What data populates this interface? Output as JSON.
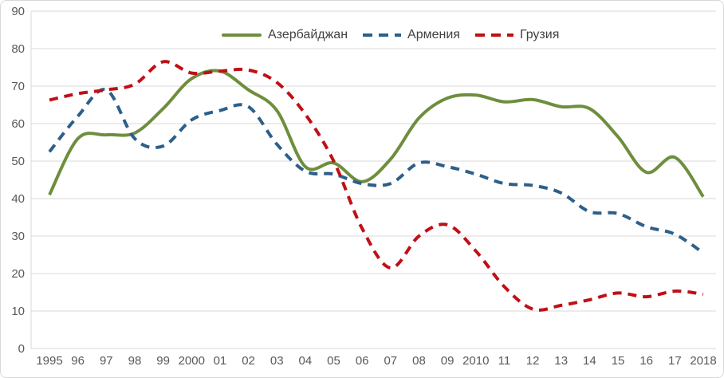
{
  "chart_data": {
    "type": "line",
    "title": "",
    "x_labels": [
      "1995",
      "96",
      "97",
      "98",
      "99",
      "2000",
      "01",
      "02",
      "03",
      "04",
      "05",
      "06",
      "07",
      "08",
      "09",
      "2010",
      "11",
      "12",
      "13",
      "14",
      "15",
      "16",
      "17",
      "2018"
    ],
    "y_ticks": [
      0,
      10,
      20,
      30,
      40,
      50,
      60,
      70,
      80,
      90
    ],
    "ylim": [
      0,
      90
    ],
    "grid": "horizontal",
    "legend_position": "top-center",
    "series": [
      {
        "name": "Азербайджан",
        "key": "azerbaijan",
        "color": "#6e8e3e",
        "style": "solid",
        "dasharray": "",
        "values": [
          41,
          56,
          57,
          57.5,
          64,
          72,
          74,
          69,
          63.5,
          48.5,
          49.5,
          44.5,
          50.5,
          61.5,
          66.8,
          67.6,
          65.8,
          66.4,
          64.5,
          64,
          56.5,
          47,
          51,
          40.5
        ]
      },
      {
        "name": "Армения",
        "key": "armenia",
        "color": "#2d5f8a",
        "style": "dashed",
        "dasharray": "11,8",
        "values": [
          52.5,
          62,
          69,
          56,
          54,
          61,
          63.5,
          64.5,
          54.5,
          47.3,
          46.5,
          44,
          44,
          49.5,
          48.5,
          46.5,
          44,
          43.5,
          41.5,
          36.5,
          36,
          32.5,
          30.5,
          25.5
        ]
      },
      {
        "name": "Грузия",
        "key": "georgia",
        "color": "#c00f16",
        "style": "dashed",
        "dasharray": "11,8",
        "values": [
          66.3,
          68,
          69,
          70.5,
          76.5,
          73.5,
          74,
          74.3,
          71,
          62.5,
          50,
          32,
          21.5,
          30,
          33,
          26,
          16.5,
          10.5,
          11.5,
          13,
          14.8,
          13.8,
          15.3,
          14.5
        ]
      }
    ],
    "colors": {
      "grid": "#d9d9d9",
      "axis_text": "#595959",
      "legend_text": "#404040",
      "border": "#d8d8d8",
      "background": "#ffffff"
    }
  }
}
